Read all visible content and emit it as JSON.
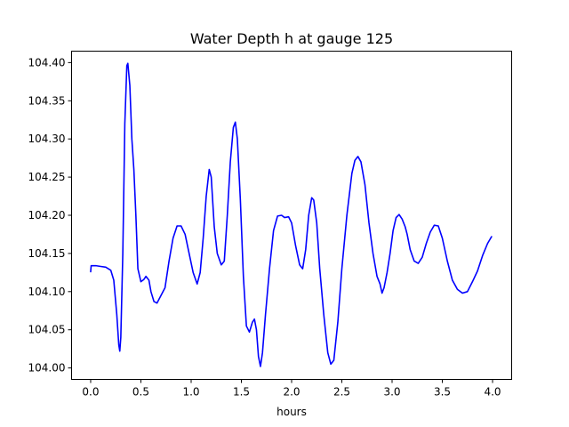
{
  "chart_data": {
    "type": "line",
    "title": "Water Depth h at gauge 125",
    "xlabel": "hours",
    "ylabel": "",
    "xlim": [
      -0.19,
      4.19
    ],
    "ylim": [
      103.985,
      104.415
    ],
    "grid": false,
    "legend": "none",
    "x_ticks": [
      0.0,
      0.5,
      1.0,
      1.5,
      2.0,
      2.5,
      3.0,
      3.5,
      4.0
    ],
    "x_tick_labels": [
      "0.0",
      "0.5",
      "1.0",
      "1.5",
      "2.0",
      "2.5",
      "3.0",
      "3.5",
      "4.0"
    ],
    "y_ticks": [
      104.0,
      104.05,
      104.1,
      104.15,
      104.2,
      104.25,
      104.3,
      104.35,
      104.4
    ],
    "y_tick_labels": [
      "104.00",
      "104.05",
      "104.10",
      "104.15",
      "104.20",
      "104.25",
      "104.30",
      "104.35",
      "104.40"
    ],
    "series": [
      {
        "color": "#0000ff",
        "points": [
          [
            0.0,
            104.126
          ],
          [
            0.005,
            104.134
          ],
          [
            0.05,
            104.134
          ],
          [
            0.1,
            104.133
          ],
          [
            0.15,
            104.132
          ],
          [
            0.2,
            104.128
          ],
          [
            0.23,
            104.115
          ],
          [
            0.26,
            104.07
          ],
          [
            0.28,
            104.03
          ],
          [
            0.29,
            104.022
          ],
          [
            0.3,
            104.04
          ],
          [
            0.32,
            104.15
          ],
          [
            0.34,
            104.32
          ],
          [
            0.36,
            104.396
          ],
          [
            0.37,
            104.399
          ],
          [
            0.39,
            104.37
          ],
          [
            0.41,
            104.3
          ],
          [
            0.43,
            104.26
          ],
          [
            0.45,
            104.2
          ],
          [
            0.47,
            104.13
          ],
          [
            0.5,
            104.113
          ],
          [
            0.53,
            104.116
          ],
          [
            0.55,
            104.12
          ],
          [
            0.58,
            104.115
          ],
          [
            0.6,
            104.1
          ],
          [
            0.63,
            104.087
          ],
          [
            0.66,
            104.085
          ],
          [
            0.7,
            104.095
          ],
          [
            0.74,
            104.105
          ],
          [
            0.78,
            104.14
          ],
          [
            0.82,
            104.17
          ],
          [
            0.86,
            104.186
          ],
          [
            0.9,
            104.186
          ],
          [
            0.94,
            104.175
          ],
          [
            0.98,
            104.15
          ],
          [
            1.02,
            104.125
          ],
          [
            1.06,
            104.11
          ],
          [
            1.09,
            104.125
          ],
          [
            1.12,
            104.17
          ],
          [
            1.15,
            104.225
          ],
          [
            1.18,
            104.26
          ],
          [
            1.2,
            104.25
          ],
          [
            1.23,
            104.185
          ],
          [
            1.26,
            104.15
          ],
          [
            1.3,
            104.135
          ],
          [
            1.33,
            104.14
          ],
          [
            1.36,
            104.2
          ],
          [
            1.39,
            104.27
          ],
          [
            1.42,
            104.315
          ],
          [
            1.44,
            104.322
          ],
          [
            1.46,
            104.3
          ],
          [
            1.49,
            104.22
          ],
          [
            1.52,
            104.12
          ],
          [
            1.55,
            104.055
          ],
          [
            1.58,
            104.047
          ],
          [
            1.61,
            104.06
          ],
          [
            1.63,
            104.064
          ],
          [
            1.65,
            104.05
          ],
          [
            1.67,
            104.015
          ],
          [
            1.69,
            104.002
          ],
          [
            1.71,
            104.02
          ],
          [
            1.74,
            104.07
          ],
          [
            1.78,
            104.13
          ],
          [
            1.82,
            104.18
          ],
          [
            1.86,
            104.199
          ],
          [
            1.9,
            104.2
          ],
          [
            1.93,
            104.197
          ],
          [
            1.97,
            104.198
          ],
          [
            2.0,
            104.19
          ],
          [
            2.04,
            104.16
          ],
          [
            2.08,
            104.135
          ],
          [
            2.11,
            104.13
          ],
          [
            2.14,
            104.155
          ],
          [
            2.17,
            104.2
          ],
          [
            2.2,
            104.223
          ],
          [
            2.22,
            104.22
          ],
          [
            2.25,
            104.19
          ],
          [
            2.28,
            104.13
          ],
          [
            2.32,
            104.07
          ],
          [
            2.36,
            104.02
          ],
          [
            2.39,
            104.005
          ],
          [
            2.42,
            104.01
          ],
          [
            2.46,
            104.06
          ],
          [
            2.5,
            104.13
          ],
          [
            2.55,
            104.2
          ],
          [
            2.6,
            104.255
          ],
          [
            2.63,
            104.272
          ],
          [
            2.66,
            104.277
          ],
          [
            2.69,
            104.27
          ],
          [
            2.73,
            104.24
          ],
          [
            2.77,
            104.19
          ],
          [
            2.81,
            104.15
          ],
          [
            2.85,
            104.12
          ],
          [
            2.88,
            104.11
          ],
          [
            2.9,
            104.098
          ],
          [
            2.92,
            104.105
          ],
          [
            2.95,
            104.125
          ],
          [
            2.98,
            104.15
          ],
          [
            3.01,
            104.18
          ],
          [
            3.04,
            104.197
          ],
          [
            3.07,
            104.201
          ],
          [
            3.1,
            104.195
          ],
          [
            3.13,
            104.185
          ],
          [
            3.15,
            104.175
          ],
          [
            3.18,
            104.155
          ],
          [
            3.22,
            104.14
          ],
          [
            3.26,
            104.137
          ],
          [
            3.3,
            104.145
          ],
          [
            3.34,
            104.163
          ],
          [
            3.38,
            104.178
          ],
          [
            3.42,
            104.187
          ],
          [
            3.46,
            104.186
          ],
          [
            3.5,
            104.17
          ],
          [
            3.55,
            104.14
          ],
          [
            3.6,
            104.115
          ],
          [
            3.65,
            104.103
          ],
          [
            3.7,
            104.098
          ],
          [
            3.75,
            104.1
          ],
          [
            3.8,
            104.113
          ],
          [
            3.85,
            104.127
          ],
          [
            3.9,
            104.147
          ],
          [
            3.95,
            104.163
          ],
          [
            3.99,
            104.172
          ]
        ]
      }
    ]
  }
}
